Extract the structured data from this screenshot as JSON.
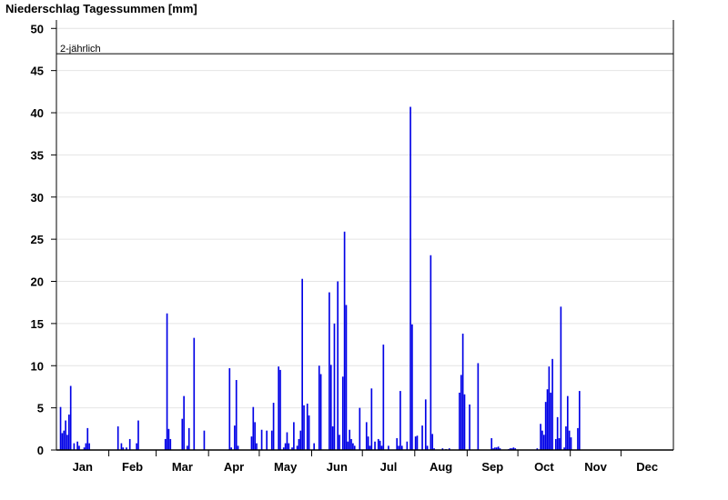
{
  "chart_data": {
    "type": "bar",
    "title": "Niederschlag Tagessummen [mm]",
    "xlabel": "",
    "ylabel": "",
    "ylim": [
      0,
      51
    ],
    "yticks": [
      0,
      5,
      10,
      15,
      20,
      25,
      30,
      35,
      40,
      45,
      50
    ],
    "months": [
      "Jan",
      "Feb",
      "Mar",
      "Apr",
      "May",
      "Jun",
      "Jul",
      "Aug",
      "Sep",
      "Oct",
      "Nov",
      "Dec"
    ],
    "days_in_year": 365,
    "grid": true,
    "bar_color": "#0000e6",
    "reference_line": {
      "label": "2-jährlich",
      "value": 47
    },
    "series": [
      {
        "values": [
          {
            "day": 3,
            "value": 5.1
          },
          {
            "day": 4,
            "value": 2.0
          },
          {
            "day": 5,
            "value": 2.3
          },
          {
            "day": 6,
            "value": 3.5
          },
          {
            "day": 7,
            "value": 1.8
          },
          {
            "day": 8,
            "value": 4.2
          },
          {
            "day": 9,
            "value": 7.6
          },
          {
            "day": 11,
            "value": 0.8
          },
          {
            "day": 13,
            "value": 1.0
          },
          {
            "day": 14,
            "value": 0.5
          },
          {
            "day": 17,
            "value": 0.3
          },
          {
            "day": 18,
            "value": 0.8
          },
          {
            "day": 19,
            "value": 2.6
          },
          {
            "day": 20,
            "value": 0.8
          },
          {
            "day": 37,
            "value": 2.8
          },
          {
            "day": 39,
            "value": 0.8
          },
          {
            "day": 40,
            "value": 0.3
          },
          {
            "day": 42,
            "value": 0.3
          },
          {
            "day": 44,
            "value": 1.3
          },
          {
            "day": 48,
            "value": 0.8
          },
          {
            "day": 49,
            "value": 3.5
          },
          {
            "day": 65,
            "value": 1.3
          },
          {
            "day": 66,
            "value": 16.2
          },
          {
            "day": 67,
            "value": 2.5
          },
          {
            "day": 68,
            "value": 1.3
          },
          {
            "day": 75,
            "value": 3.7
          },
          {
            "day": 76,
            "value": 6.4
          },
          {
            "day": 78,
            "value": 0.5
          },
          {
            "day": 79,
            "value": 2.6
          },
          {
            "day": 82,
            "value": 13.3
          },
          {
            "day": 88,
            "value": 2.3
          },
          {
            "day": 103,
            "value": 9.7
          },
          {
            "day": 104,
            "value": 0.3
          },
          {
            "day": 106,
            "value": 2.9
          },
          {
            "day": 107,
            "value": 8.3
          },
          {
            "day": 108,
            "value": 0.5
          },
          {
            "day": 116,
            "value": 1.6
          },
          {
            "day": 117,
            "value": 5.1
          },
          {
            "day": 118,
            "value": 3.3
          },
          {
            "day": 119,
            "value": 0.8
          },
          {
            "day": 122,
            "value": 2.4
          },
          {
            "day": 125,
            "value": 2.3
          },
          {
            "day": 128,
            "value": 2.3
          },
          {
            "day": 129,
            "value": 5.6
          },
          {
            "day": 132,
            "value": 9.9
          },
          {
            "day": 133,
            "value": 9.5
          },
          {
            "day": 135,
            "value": 0.3
          },
          {
            "day": 136,
            "value": 0.8
          },
          {
            "day": 137,
            "value": 2.1
          },
          {
            "day": 138,
            "value": 0.8
          },
          {
            "day": 140,
            "value": 0.3
          },
          {
            "day": 141,
            "value": 3.3
          },
          {
            "day": 143,
            "value": 0.5
          },
          {
            "day": 144,
            "value": 1.3
          },
          {
            "day": 145,
            "value": 2.3
          },
          {
            "day": 146,
            "value": 20.3
          },
          {
            "day": 147,
            "value": 5.3
          },
          {
            "day": 149,
            "value": 5.5
          },
          {
            "day": 150,
            "value": 4.1
          },
          {
            "day": 153,
            "value": 0.8
          },
          {
            "day": 156,
            "value": 10.0
          },
          {
            "day": 157,
            "value": 9.0
          },
          {
            "day": 162,
            "value": 18.7
          },
          {
            "day": 163,
            "value": 10.1
          },
          {
            "day": 164,
            "value": 2.8
          },
          {
            "day": 165,
            "value": 15.0
          },
          {
            "day": 167,
            "value": 20.0
          },
          {
            "day": 168,
            "value": 1.8
          },
          {
            "day": 170,
            "value": 8.7
          },
          {
            "day": 171,
            "value": 25.9
          },
          {
            "day": 172,
            "value": 17.2
          },
          {
            "day": 173,
            "value": 1.0
          },
          {
            "day": 174,
            "value": 2.4
          },
          {
            "day": 175,
            "value": 1.3
          },
          {
            "day": 176,
            "value": 0.8
          },
          {
            "day": 177,
            "value": 0.5
          },
          {
            "day": 180,
            "value": 5.0
          },
          {
            "day": 184,
            "value": 3.3
          },
          {
            "day": 185,
            "value": 1.6
          },
          {
            "day": 186,
            "value": 0.5
          },
          {
            "day": 187,
            "value": 7.3
          },
          {
            "day": 189,
            "value": 1.0
          },
          {
            "day": 191,
            "value": 1.3
          },
          {
            "day": 192,
            "value": 1.1
          },
          {
            "day": 193,
            "value": 0.5
          },
          {
            "day": 194,
            "value": 12.5
          },
          {
            "day": 197,
            "value": 0.5
          },
          {
            "day": 202,
            "value": 1.4
          },
          {
            "day": 203,
            "value": 0.5
          },
          {
            "day": 204,
            "value": 7.0
          },
          {
            "day": 205,
            "value": 0.5
          },
          {
            "day": 208,
            "value": 1.0
          },
          {
            "day": 210,
            "value": 40.7
          },
          {
            "day": 211,
            "value": 14.9
          },
          {
            "day": 213,
            "value": 1.6
          },
          {
            "day": 214,
            "value": 1.7
          },
          {
            "day": 217,
            "value": 2.9
          },
          {
            "day": 219,
            "value": 6.0
          },
          {
            "day": 220,
            "value": 0.5
          },
          {
            "day": 222,
            "value": 23.1
          },
          {
            "day": 223,
            "value": 1.9
          },
          {
            "day": 224,
            "value": 0.2
          },
          {
            "day": 229,
            "value": 0.2
          },
          {
            "day": 231,
            "value": 0.1
          },
          {
            "day": 233,
            "value": 0.2
          },
          {
            "day": 239,
            "value": 6.8
          },
          {
            "day": 240,
            "value": 8.9
          },
          {
            "day": 241,
            "value": 13.8
          },
          {
            "day": 242,
            "value": 6.6
          },
          {
            "day": 245,
            "value": 5.4
          },
          {
            "day": 250,
            "value": 10.3
          },
          {
            "day": 258,
            "value": 1.4
          },
          {
            "day": 259,
            "value": 0.2
          },
          {
            "day": 260,
            "value": 0.3
          },
          {
            "day": 261,
            "value": 0.3
          },
          {
            "day": 262,
            "value": 0.4
          },
          {
            "day": 263,
            "value": 0.2
          },
          {
            "day": 268,
            "value": 0.1
          },
          {
            "day": 269,
            "value": 0.2
          },
          {
            "day": 270,
            "value": 0.2
          },
          {
            "day": 271,
            "value": 0.3
          },
          {
            "day": 272,
            "value": 0.2
          },
          {
            "day": 285,
            "value": 0.2
          },
          {
            "day": 287,
            "value": 3.1
          },
          {
            "day": 288,
            "value": 2.3
          },
          {
            "day": 289,
            "value": 1.8
          },
          {
            "day": 290,
            "value": 5.7
          },
          {
            "day": 291,
            "value": 7.2
          },
          {
            "day": 292,
            "value": 9.9
          },
          {
            "day": 293,
            "value": 6.8
          },
          {
            "day": 294,
            "value": 10.8
          },
          {
            "day": 296,
            "value": 1.3
          },
          {
            "day": 297,
            "value": 3.9
          },
          {
            "day": 298,
            "value": 1.4
          },
          {
            "day": 299,
            "value": 17.0
          },
          {
            "day": 301,
            "value": 0.3
          },
          {
            "day": 302,
            "value": 2.8
          },
          {
            "day": 303,
            "value": 6.4
          },
          {
            "day": 304,
            "value": 2.3
          },
          {
            "day": 305,
            "value": 1.5
          },
          {
            "day": 309,
            "value": 2.6
          },
          {
            "day": 310,
            "value": 7.0
          }
        ]
      }
    ]
  }
}
